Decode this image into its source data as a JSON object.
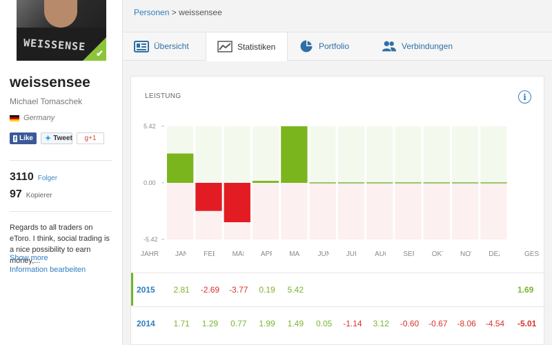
{
  "profile": {
    "avatar_text": "WEISSENSE",
    "username": "weissensee",
    "realname": "Michael Tomaschek",
    "country": "Germany",
    "followers_count": "3110",
    "followers_label": "Folger",
    "copiers_count": "97",
    "copiers_label": "Kopierer",
    "bio": "Regards to all traders on eToro. I think, social trading is a nice possibility to earn money,...",
    "show_more": "Show more",
    "edit_info": "Information bearbeiten"
  },
  "social": {
    "like": "Like",
    "tweet": "Tweet",
    "gplus": "g+1"
  },
  "breadcrumb": {
    "parent": "Personen",
    "separator": ">",
    "current": "weissensee"
  },
  "tabs": [
    {
      "label": "Übersicht",
      "icon": "overview-icon"
    },
    {
      "label": "Statistiken",
      "icon": "stats-chart-icon"
    },
    {
      "label": "Portfolio",
      "icon": "pie-chart-icon"
    },
    {
      "label": "Verbindungen",
      "icon": "users-icon"
    }
  ],
  "card": {
    "title": "LEISTUNG"
  },
  "chart_data": {
    "type": "bar",
    "categories": [
      "JAN",
      "FEB",
      "MÄR",
      "APR",
      "MAI",
      "JUN",
      "JUL",
      "AUG",
      "SEP",
      "OKT",
      "NOV",
      "DEZ"
    ],
    "values": [
      2.81,
      -2.69,
      -3.77,
      0.19,
      5.42,
      0,
      0,
      0,
      0,
      0,
      0,
      0
    ],
    "y_ticks": [
      "5.42",
      "0.00",
      "-5.42"
    ],
    "ylim": [
      -5.42,
      5.42
    ],
    "colors": {
      "positive": "#7ab51d",
      "negative": "#e21c22",
      "bg_positive": "#f4f9ee",
      "bg_negative": "#fcf0f0"
    }
  },
  "table": {
    "columns_visible": [
      "JAHR",
      "JAN",
      "FEE",
      "MÄF",
      "APF",
      "MA",
      "JUN",
      "JUI",
      "AUG",
      "SEF",
      "OKT",
      "NOV",
      "DEZ",
      "GES"
    ],
    "rows": [
      {
        "year": "2015",
        "values": [
          "2.81",
          "-2.69",
          "-3.77",
          "0.19",
          "5.42",
          "",
          "",
          "",
          "",
          "",
          "",
          ""
        ],
        "total": "1.69"
      },
      {
        "year": "2014",
        "values": [
          "1.71",
          "1.29",
          "0.77",
          "1.99",
          "1.49",
          "0.05",
          "-1.14",
          "3.12",
          "-0.60",
          "-0.67",
          "-8.06",
          "-4.54"
        ],
        "total": "-5.01"
      }
    ]
  }
}
